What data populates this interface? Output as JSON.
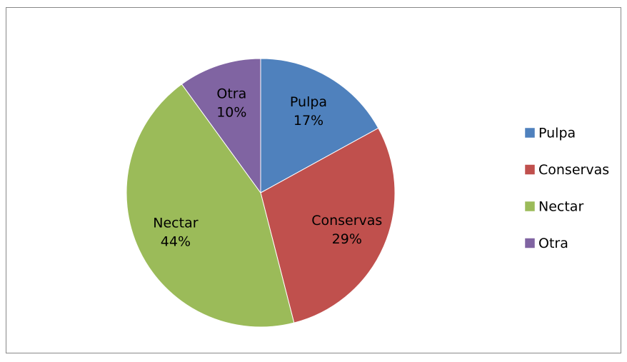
{
  "chart_data": {
    "type": "pie",
    "categories": [
      "Pulpa",
      "Conservas",
      "Nectar",
      "Otra"
    ],
    "values": [
      17,
      29,
      44,
      10
    ],
    "value_labels": [
      "17%",
      "29%",
      "44%",
      "10%"
    ],
    "colors": [
      "#4f81bd",
      "#c0504d",
      "#9bbb59",
      "#8064a2"
    ],
    "legend": "right"
  }
}
